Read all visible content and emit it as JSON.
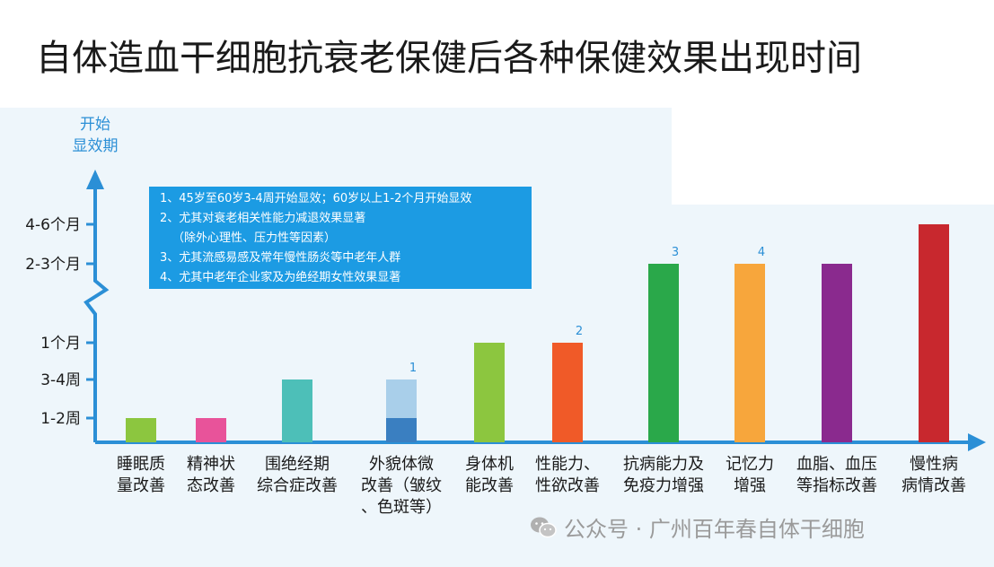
{
  "title": "自体造血干细胞抗衰老保健后各种保健效果出现时间",
  "chart_data": {
    "type": "bar",
    "title": "自体造血干细胞抗衰老保健后各种保健效果出现时间",
    "ylabel": [
      "开始",
      "显效期"
    ],
    "y_ticks": [
      "1-2周",
      "3-4周",
      "1个月",
      "2-3个月",
      "4-6个月"
    ],
    "categories": [
      [
        "睡眠质",
        "量改善"
      ],
      [
        "精神状",
        "态改善"
      ],
      [
        "围绝经期",
        "综合症改善"
      ],
      [
        "外貌体微",
        "改善（皱纹",
        "、色斑等）"
      ],
      [
        "身体机",
        "能改善"
      ],
      [
        "性能力、",
        "性欲改善"
      ],
      [
        "抗病能力及",
        "免疫力增强"
      ],
      [
        "记忆力",
        "增强"
      ],
      [
        "血脂、血压",
        "等指标改善"
      ],
      [
        "慢性病",
        "病情改善"
      ]
    ],
    "values": [
      "1-2周",
      "1-2周",
      "3-4周",
      "1-2周 至 3-4周",
      "1个月",
      "1个月",
      "2-3个月",
      "2-3个月",
      "2-3个月",
      "4-6个月"
    ],
    "value_levels": [
      1,
      1,
      2,
      2,
      3,
      3,
      4,
      4,
      4,
      5
    ],
    "value_base_levels": [
      0,
      0,
      0,
      1,
      0,
      0,
      0,
      0,
      0,
      0
    ],
    "colors": [
      "#8cc63f",
      "#e8539a",
      "#4dbfb8",
      "#a9cfea",
      "#8cc63f",
      "#f05a28",
      "#2aa84a",
      "#f7a63c",
      "#8a2a8e",
      "#c8282e"
    ],
    "secondary_color": "#3a7fc1",
    "annotations": [
      "",
      "",
      "",
      "1",
      "",
      "2",
      "3",
      "4",
      "",
      ""
    ],
    "axis_color": "#2b8fd6",
    "grid": false
  },
  "notes": [
    "1、45岁至60岁3-4周开始显效；60岁以上1-2个月开始显效",
    "2、尤其对衰老相关性能力减退效果显著",
    "（除外心理性、压力性等因素）",
    "3、尤其流感易感及常年慢性肠炎等中老年人群",
    "4、尤其中老年企业家及为绝经期女性效果显著"
  ],
  "watermark": "公众号 · 广州百年春自体干细胞"
}
